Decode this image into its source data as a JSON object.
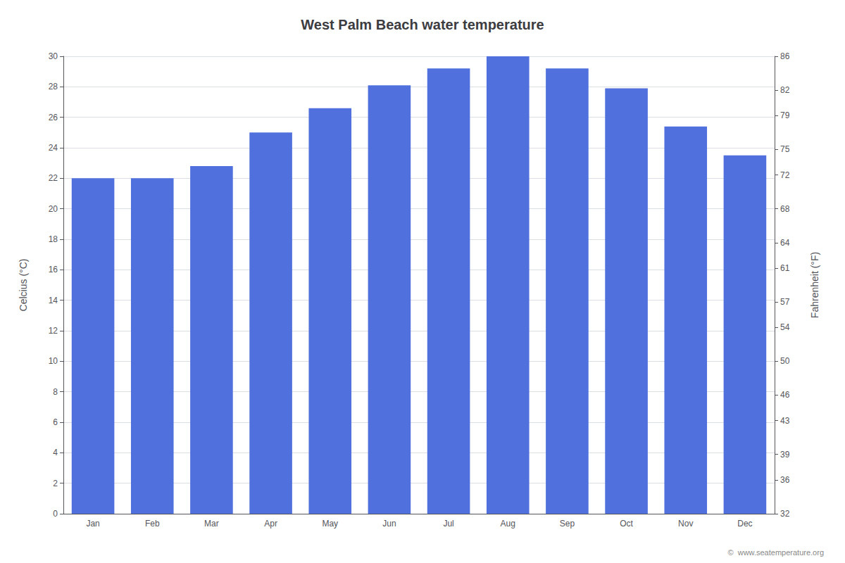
{
  "chart_data": {
    "type": "bar",
    "title": "West Palm Beach water temperature",
    "categories": [
      "Jan",
      "Feb",
      "Mar",
      "Apr",
      "May",
      "Jun",
      "Jul",
      "Aug",
      "Sep",
      "Oct",
      "Nov",
      "Dec"
    ],
    "values": [
      22.0,
      22.0,
      22.8,
      25.0,
      26.6,
      28.1,
      29.2,
      30.0,
      29.2,
      27.9,
      25.4,
      23.5
    ],
    "ylabel": "Celcius (°C)",
    "y2label": "Fahrenheit (°F)",
    "ylim": [
      0,
      30
    ],
    "yticks": [
      0,
      2,
      4,
      6,
      8,
      10,
      12,
      14,
      16,
      18,
      20,
      22,
      24,
      26,
      28,
      30
    ],
    "y2lim": [
      32,
      86
    ],
    "y2ticks": [
      32,
      36,
      39,
      43,
      46,
      50,
      54,
      57,
      61,
      64,
      68,
      72,
      75,
      79,
      82,
      86
    ],
    "annotations": [
      "©  www.seatemperature.org"
    ],
    "grid": true
  }
}
